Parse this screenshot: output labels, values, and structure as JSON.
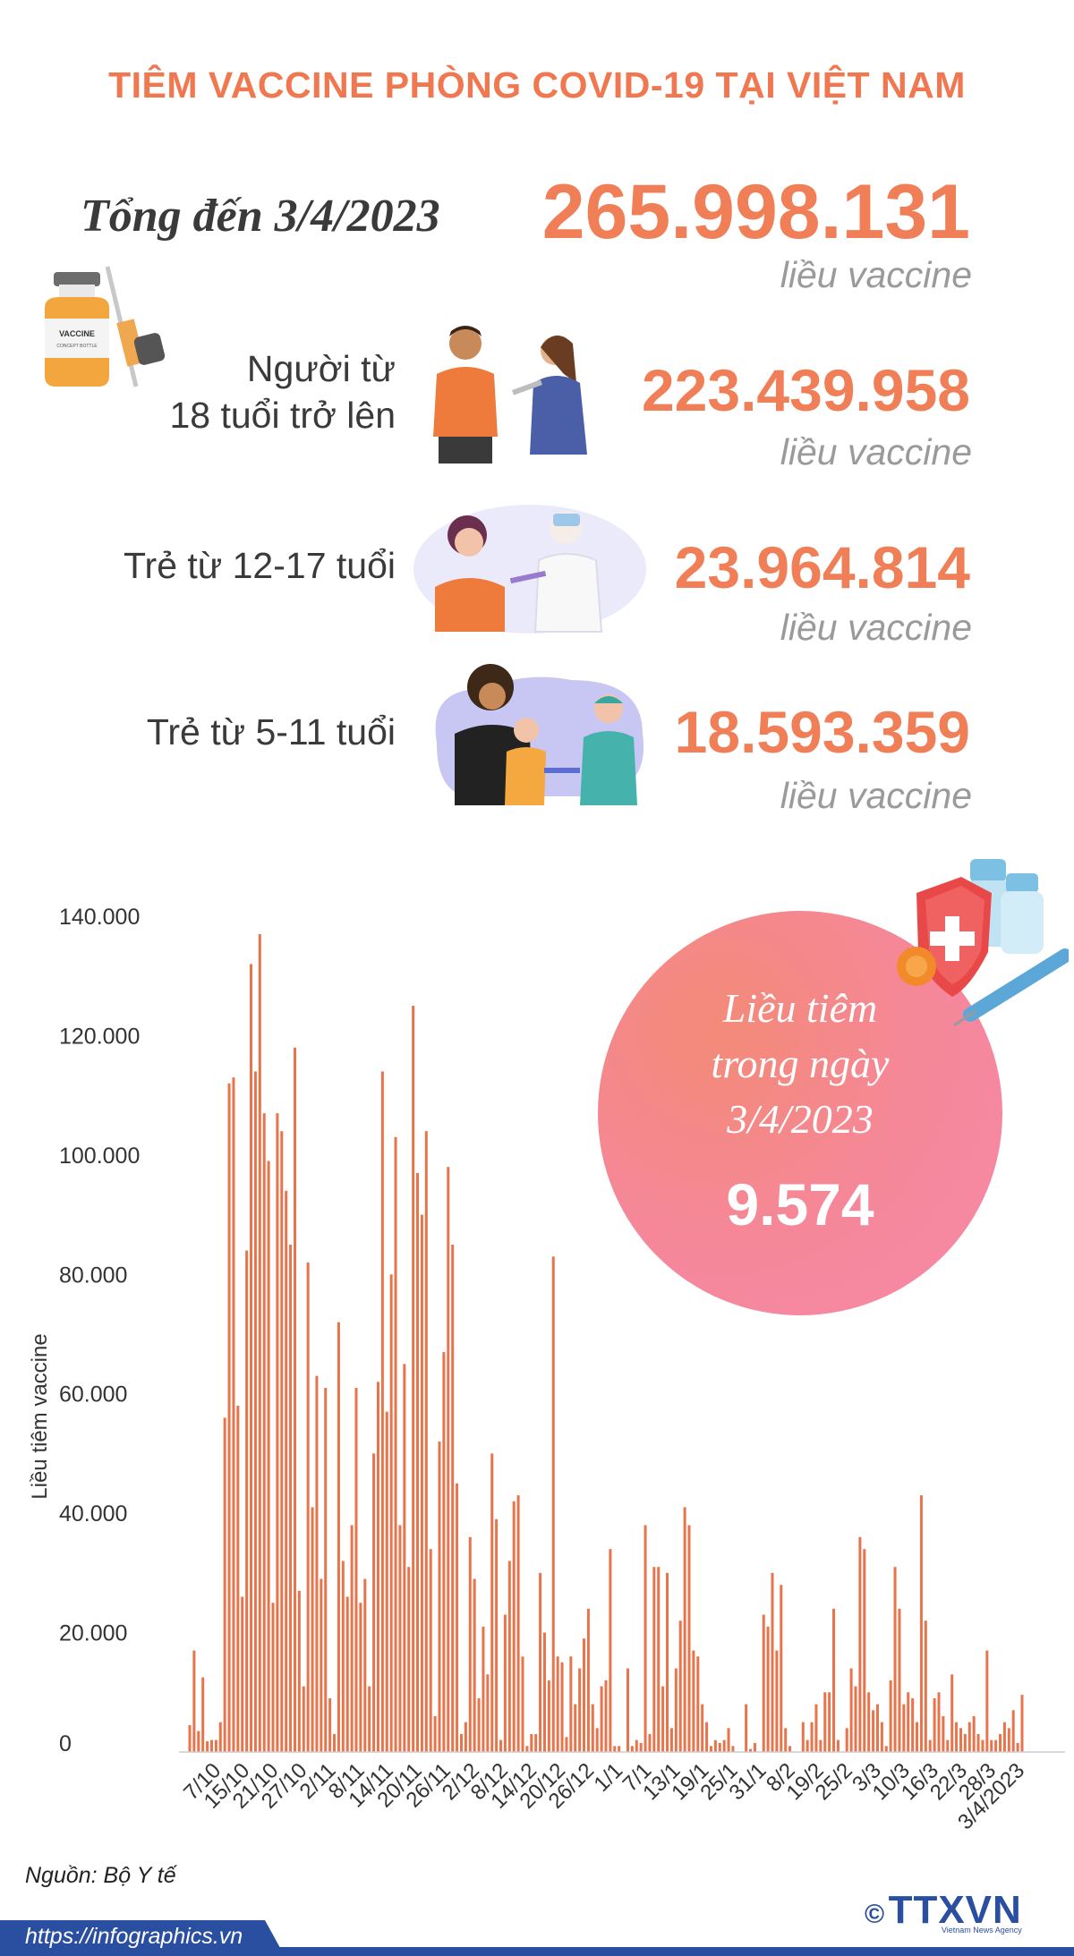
{
  "title": "TIÊM VACCINE PHÒNG COVID-19 TẠI VIỆT NAM",
  "total": {
    "label": "Tổng đến 3/4/2023",
    "value": "265.998.131",
    "unit": "liều vaccine"
  },
  "groups": [
    {
      "label_lines": [
        "Người từ",
        "18 tuổi trở lên"
      ],
      "value": "223.439.958",
      "unit": "liều vaccine"
    },
    {
      "label_lines": [
        "Trẻ từ 12-17 tuổi"
      ],
      "value": "23.964.814",
      "unit": "liều vaccine"
    },
    {
      "label_lines": [
        "Trẻ từ 5-11 tuổi"
      ],
      "value": "18.593.359",
      "unit": "liều vaccine"
    }
  ],
  "daily_callout": {
    "lines": [
      "Liều tiêm",
      "trong ngày",
      "3/4/2023"
    ],
    "value": "9.574"
  },
  "source": "Nguồn: Bộ Y tế",
  "url": "https://infographics.vn",
  "logo": {
    "text": "TTXVN",
    "subtitle": "Vietnam News Agency",
    "symbol": "©"
  },
  "colors": {
    "accent": "#f07e57",
    "bar": "#e8744c",
    "bubble": "#f5879a",
    "footer": "#2a4ea0"
  },
  "chart_data": {
    "type": "bar",
    "ylabel": "Liều tiêm vaccine",
    "ylim": [
      0,
      140000
    ],
    "yticks": [
      0,
      20000,
      40000,
      60000,
      80000,
      100000,
      120000,
      140000
    ],
    "ytick_labels": [
      "0",
      "20.000",
      "40.000",
      "60.000",
      "80.000",
      "100.000",
      "120.000",
      "140.000"
    ],
    "xtick_labels": [
      "7/10",
      "15/10",
      "21/10",
      "27/10",
      "2/11",
      "8/11",
      "14/11",
      "20/11",
      "26/11",
      "2/12",
      "8/12",
      "14/12",
      "20/12",
      "26/12",
      "1/1",
      "7/1",
      "13/1",
      "19/1",
      "25/1",
      "31/1",
      "8/2",
      "19/2",
      "25/2",
      "3/3",
      "10/3",
      "16/3",
      "22/3",
      "28/3",
      "3/4/2023"
    ],
    "values": [
      4500,
      17000,
      3500,
      12500,
      1800,
      2000,
      2000,
      5000,
      56000,
      112000,
      113000,
      58000,
      26000,
      84000,
      132000,
      114000,
      137000,
      107000,
      99000,
      25000,
      107000,
      104000,
      94000,
      85000,
      118000,
      27000,
      11000,
      82000,
      41000,
      63000,
      29000,
      61000,
      9000,
      3000,
      72000,
      32000,
      26000,
      38000,
      61000,
      25000,
      29000,
      11000,
      50000,
      62000,
      114000,
      57000,
      80000,
      103000,
      38000,
      65000,
      31000,
      125000,
      97000,
      90000,
      104000,
      34000,
      6000,
      52000,
      67000,
      98000,
      85000,
      45000,
      3000,
      5000,
      36000,
      29000,
      9000,
      21000,
      13000,
      50000,
      39000,
      2000,
      23000,
      32000,
      42000,
      43000,
      16000,
      1000,
      3000,
      3000,
      30000,
      20000,
      12000,
      83000,
      16000,
      15000,
      2500,
      16000,
      8000,
      14000,
      19000,
      24000,
      8000,
      4000,
      11000,
      12000,
      34000,
      1000,
      1000,
      0,
      14000,
      1000,
      2000,
      1500,
      38000,
      3000,
      31000,
      31000,
      11000,
      30000,
      4000,
      14000,
      22000,
      41000,
      38000,
      17000,
      16000,
      8000,
      5000,
      1000,
      2000,
      1500,
      2000,
      4000,
      1000,
      0,
      0,
      8000,
      500,
      1500,
      0,
      23000,
      21000,
      30000,
      17000,
      28000,
      4000,
      1000,
      0,
      0,
      5000,
      2000,
      5000,
      8000,
      2000,
      10000,
      10000,
      24000,
      2000,
      0,
      4000,
      14000,
      11000,
      36000,
      34000,
      10000,
      7000,
      8000,
      5000,
      1000,
      12000,
      31000,
      24000,
      8000,
      10000,
      9000,
      5000,
      43000,
      22000,
      2000,
      9000,
      10000,
      6000,
      2000,
      13000,
      5000,
      4000,
      3000,
      5000,
      6000,
      3000,
      2000,
      17000,
      2000,
      2000,
      3000,
      5000,
      4000,
      7000,
      1500,
      9574
    ]
  }
}
